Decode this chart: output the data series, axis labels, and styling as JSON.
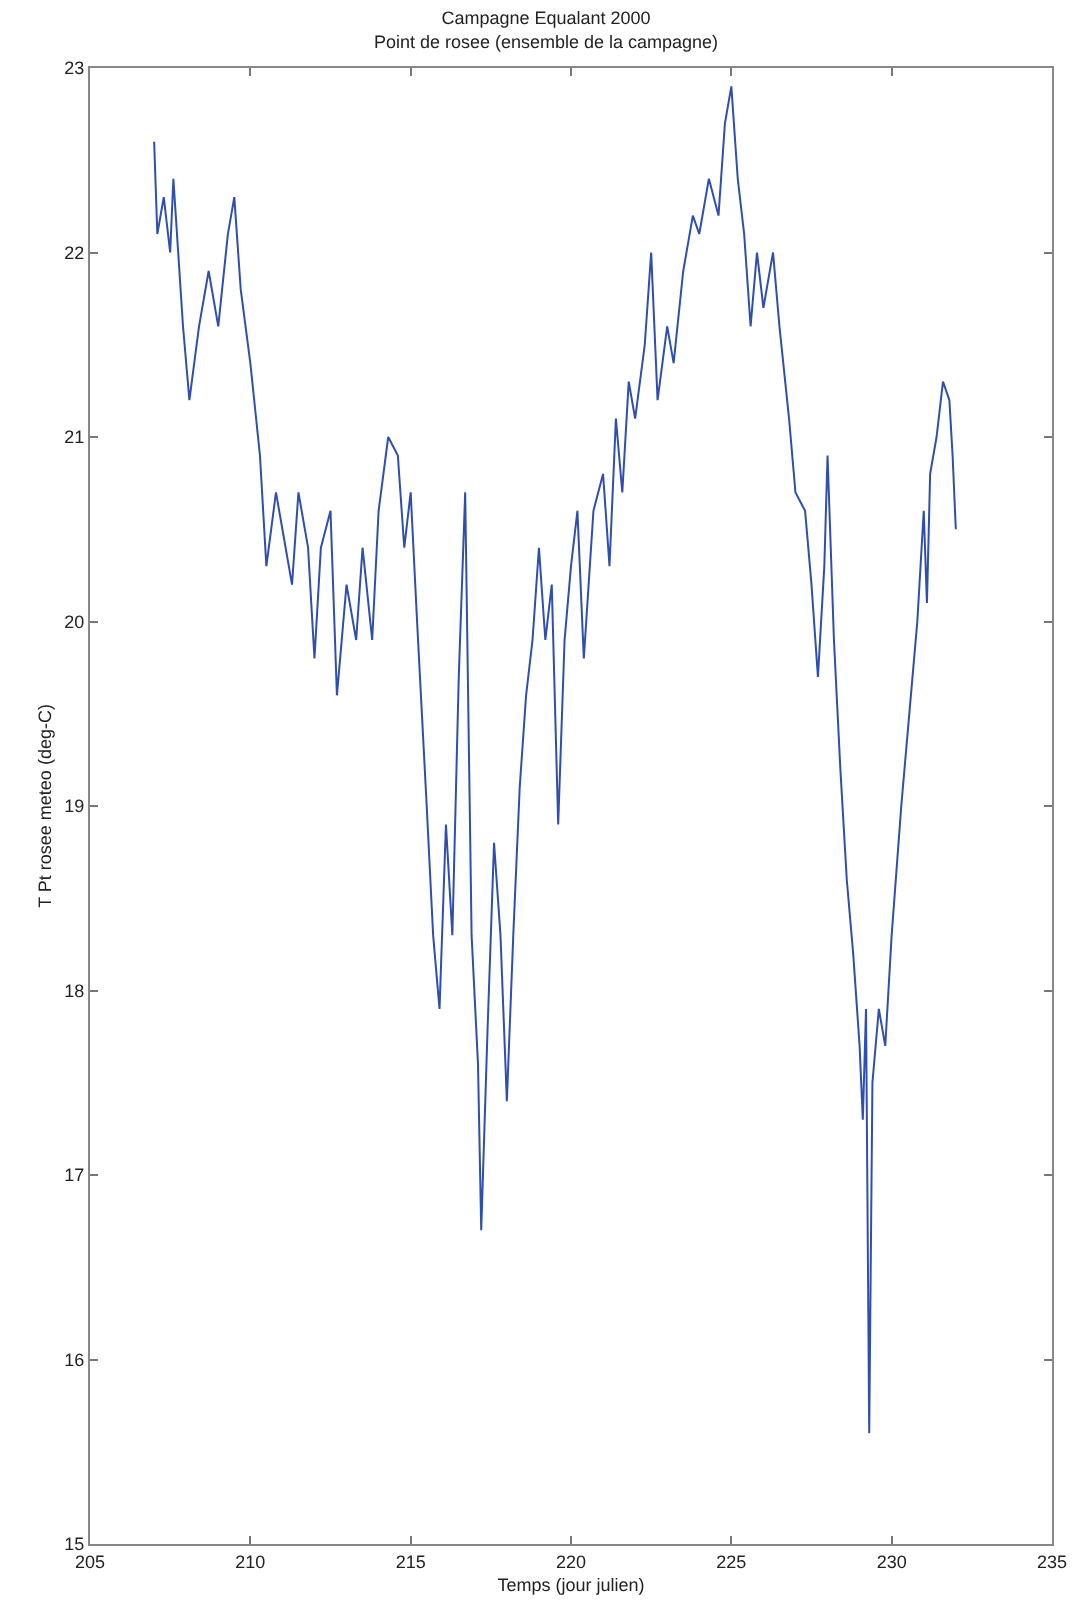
{
  "chart_data": {
    "type": "line",
    "title": "Campagne Equalant 2000",
    "subtitle": "Point de rosee (ensemble de la campagne)",
    "xlabel": "Temps (jour julien)",
    "ylabel": "T Pt rosee meteo (deg-C)",
    "xlim": [
      205,
      235
    ],
    "xticks": [
      205,
      210,
      215,
      220,
      225,
      230,
      235
    ],
    "ylim": [
      15,
      23
    ],
    "yticks": [
      15,
      16,
      17,
      18,
      19,
      20,
      21,
      22,
      23
    ],
    "marker": "none",
    "line_style": "solid",
    "series": [
      {
        "color": "#2e4fb0",
        "x": [
          207.0,
          207.1,
          207.3,
          207.5,
          207.6,
          207.9,
          208.1,
          208.4,
          208.7,
          209.0,
          209.3,
          209.5,
          209.7,
          210.0,
          210.3,
          210.5,
          210.8,
          211.0,
          211.3,
          211.5,
          211.8,
          212.0,
          212.2,
          212.5,
          212.7,
          213.0,
          213.3,
          213.5,
          213.8,
          214.0,
          214.3,
          214.6,
          214.8,
          215.0,
          215.2,
          215.5,
          215.7,
          215.9,
          216.1,
          216.3,
          216.5,
          216.7,
          216.9,
          217.1,
          217.2,
          217.4,
          217.6,
          217.8,
          218.0,
          218.2,
          218.4,
          218.6,
          218.8,
          219.0,
          219.2,
          219.4,
          219.6,
          219.8,
          220.0,
          220.2,
          220.4,
          220.7,
          221.0,
          221.2,
          221.4,
          221.6,
          221.8,
          222.0,
          222.3,
          222.5,
          222.7,
          223.0,
          223.2,
          223.5,
          223.8,
          224.0,
          224.3,
          224.6,
          224.8,
          225.0,
          225.2,
          225.4,
          225.6,
          225.8,
          226.0,
          226.3,
          226.5,
          226.8,
          227.0,
          227.3,
          227.5,
          227.7,
          227.9,
          228.0,
          228.2,
          228.4,
          228.6,
          228.8,
          229.0,
          229.1,
          229.2,
          229.3,
          229.4,
          229.6,
          229.8,
          230.0,
          230.3,
          230.6,
          230.8,
          231.0,
          231.1,
          231.2,
          231.4,
          231.6,
          231.8,
          231.9,
          232.0
        ],
        "values": [
          22.6,
          22.1,
          22.3,
          22.0,
          22.4,
          21.6,
          21.2,
          21.6,
          21.9,
          21.6,
          22.1,
          22.3,
          21.8,
          21.4,
          20.9,
          20.3,
          20.7,
          20.5,
          20.2,
          20.7,
          20.4,
          19.8,
          20.4,
          20.6,
          19.6,
          20.2,
          19.9,
          20.4,
          19.9,
          20.6,
          21.0,
          20.9,
          20.4,
          20.7,
          20.0,
          19.0,
          18.3,
          17.9,
          18.9,
          18.3,
          19.7,
          20.7,
          18.3,
          17.6,
          16.7,
          17.8,
          18.8,
          18.3,
          17.4,
          18.3,
          19.1,
          19.6,
          19.9,
          20.4,
          19.9,
          20.2,
          18.9,
          19.9,
          20.3,
          20.6,
          19.8,
          20.6,
          20.8,
          20.3,
          21.1,
          20.7,
          21.3,
          21.1,
          21.5,
          22.0,
          21.2,
          21.6,
          21.4,
          21.9,
          22.2,
          22.1,
          22.4,
          22.2,
          22.7,
          22.9,
          22.4,
          22.1,
          21.6,
          22.0,
          21.7,
          22.0,
          21.6,
          21.1,
          20.7,
          20.6,
          20.2,
          19.7,
          20.3,
          20.9,
          19.9,
          19.2,
          18.6,
          18.2,
          17.7,
          17.3,
          17.9,
          15.6,
          17.5,
          17.9,
          17.7,
          18.3,
          19.0,
          19.6,
          20.0,
          20.6,
          20.1,
          20.8,
          21.0,
          21.3,
          21.2,
          20.9,
          20.5
        ]
      }
    ]
  }
}
